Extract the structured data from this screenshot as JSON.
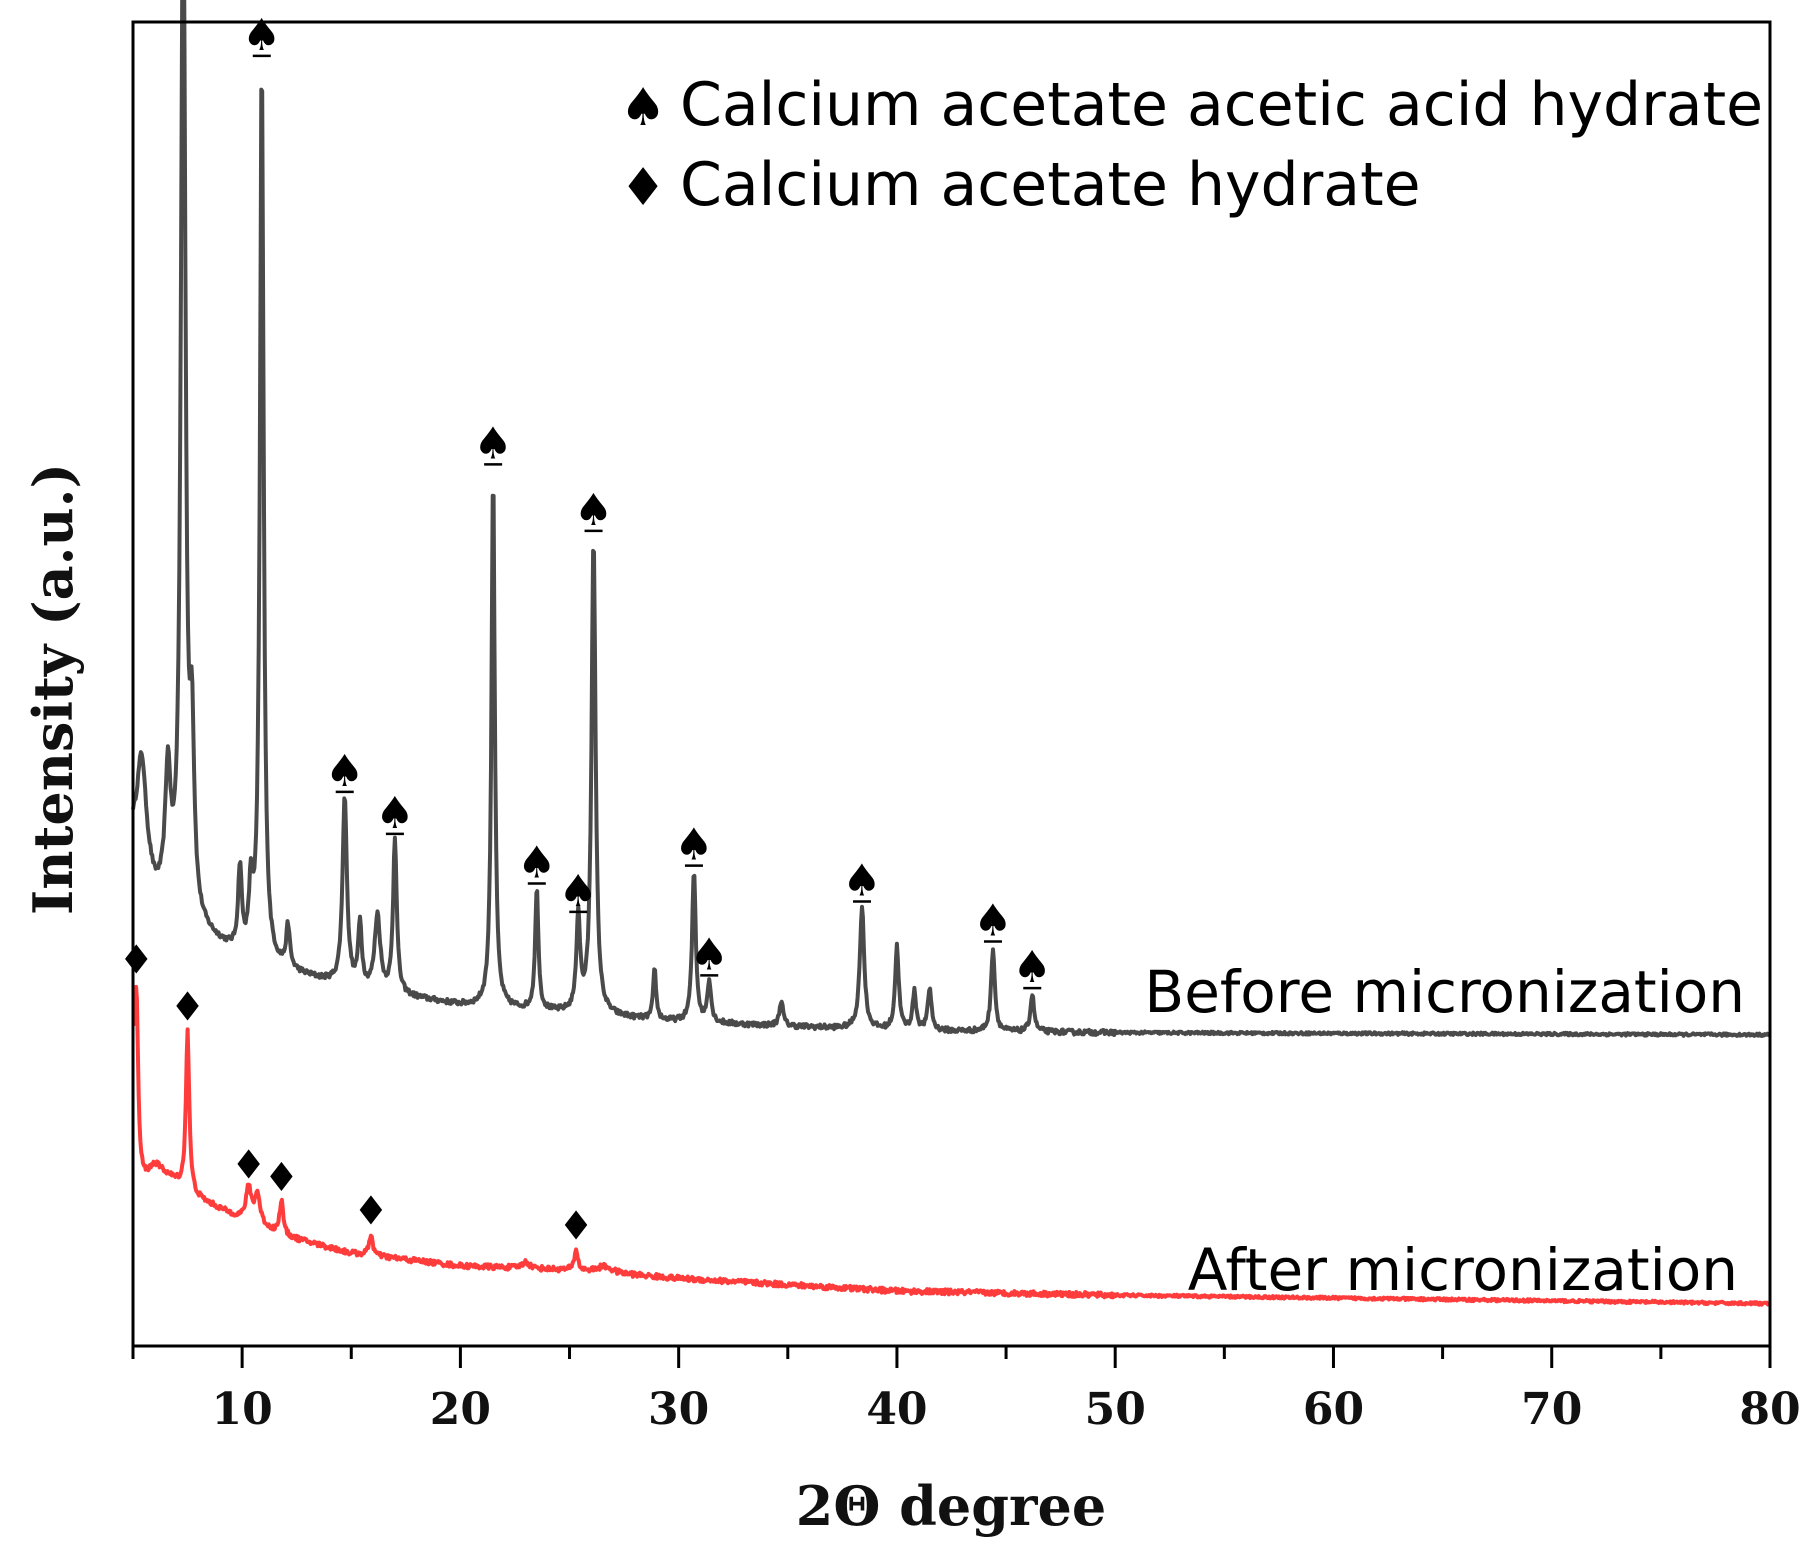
{
  "chart_data": {
    "type": "line",
    "title": "",
    "xlabel": "2Θ degree",
    "ylabel": "Intensity (a.u.)",
    "xlim": [
      5,
      80
    ],
    "xticks": [
      10,
      20,
      30,
      40,
      50,
      60,
      70,
      80
    ],
    "xtick_labels": [
      "10",
      "20",
      "30",
      "40",
      "50",
      "60",
      "70",
      "80"
    ],
    "y_ticks_shown": false,
    "grid": false,
    "legend": {
      "position": "top-right",
      "entries": [
        {
          "symbol": "♠",
          "label": "Calcium acetate acetic acid hydrate"
        },
        {
          "symbol": "♦",
          "label": "Calcium acetate hydrate"
        }
      ]
    },
    "series": [
      {
        "name": "Before micronization",
        "color": "#4a4a4a",
        "baseline": 0.06,
        "background": [
          [
            5,
            0.52
          ],
          [
            6,
            0.38
          ],
          [
            8,
            0.3
          ],
          [
            10,
            0.24
          ],
          [
            12,
            0.21
          ],
          [
            15,
            0.17
          ],
          [
            20,
            0.13
          ],
          [
            25,
            0.11
          ],
          [
            30,
            0.09
          ],
          [
            40,
            0.07
          ],
          [
            50,
            0.065
          ],
          [
            80,
            0.06
          ]
        ],
        "peaks": [
          {
            "x": 5.4,
            "h": 0.25,
            "w": 0.25,
            "marker": false
          },
          {
            "x": 6.6,
            "h": 0.3,
            "w": 0.15,
            "marker": false
          },
          {
            "x": 7.3,
            "h": 2.52,
            "w": 0.12,
            "marker": true
          },
          {
            "x": 7.7,
            "h": 0.4,
            "w": 0.12,
            "marker": false
          },
          {
            "x": 9.9,
            "h": 0.2,
            "w": 0.1,
            "marker": false
          },
          {
            "x": 10.4,
            "h": 0.15,
            "w": 0.1,
            "marker": false
          },
          {
            "x": 10.9,
            "h": 2.15,
            "w": 0.1,
            "marker": true
          },
          {
            "x": 12.1,
            "h": 0.1,
            "w": 0.1,
            "marker": false
          },
          {
            "x": 14.7,
            "h": 0.45,
            "w": 0.12,
            "marker": true
          },
          {
            "x": 15.4,
            "h": 0.15,
            "w": 0.1,
            "marker": false
          },
          {
            "x": 16.2,
            "h": 0.18,
            "w": 0.15,
            "marker": false
          },
          {
            "x": 17.0,
            "h": 0.37,
            "w": 0.1,
            "marker": true
          },
          {
            "x": 21.5,
            "h": 1.28,
            "w": 0.09,
            "marker": true
          },
          {
            "x": 23.5,
            "h": 0.29,
            "w": 0.09,
            "marker": true
          },
          {
            "x": 25.4,
            "h": 0.23,
            "w": 0.1,
            "marker": true
          },
          {
            "x": 26.1,
            "h": 1.14,
            "w": 0.11,
            "marker": true
          },
          {
            "x": 28.9,
            "h": 0.12,
            "w": 0.08,
            "marker": false
          },
          {
            "x": 30.7,
            "h": 0.36,
            "w": 0.1,
            "marker": true
          },
          {
            "x": 31.4,
            "h": 0.1,
            "w": 0.1,
            "marker": true
          },
          {
            "x": 34.7,
            "h": 0.06,
            "w": 0.1,
            "marker": false
          },
          {
            "x": 38.4,
            "h": 0.29,
            "w": 0.12,
            "marker": true
          },
          {
            "x": 40.0,
            "h": 0.2,
            "w": 0.1,
            "marker": false
          },
          {
            "x": 40.8,
            "h": 0.09,
            "w": 0.1,
            "marker": false
          },
          {
            "x": 41.5,
            "h": 0.1,
            "w": 0.1,
            "marker": false
          },
          {
            "x": 44.4,
            "h": 0.2,
            "w": 0.1,
            "marker": true
          },
          {
            "x": 46.2,
            "h": 0.09,
            "w": 0.1,
            "marker": true
          }
        ]
      },
      {
        "name": "After micronization",
        "color": "#ff3c3c",
        "baseline": -0.58,
        "background": [
          [
            5,
            -0.33
          ],
          [
            6,
            -0.25
          ],
          [
            8,
            -0.33
          ],
          [
            10,
            -0.38
          ],
          [
            12,
            -0.42
          ],
          [
            15,
            -0.46
          ],
          [
            20,
            -0.49
          ],
          [
            25,
            -0.5
          ],
          [
            30,
            -0.52
          ],
          [
            40,
            -0.55
          ],
          [
            50,
            -0.56
          ],
          [
            80,
            -0.58
          ]
        ],
        "peaks": [
          {
            "x": 5.15,
            "h": 0.5,
            "w": 0.1,
            "marker": true
          },
          {
            "x": 7.5,
            "h": 0.38,
            "w": 0.09,
            "marker": true
          },
          {
            "x": 10.3,
            "h": 0.08,
            "w": 0.15,
            "marker": true
          },
          {
            "x": 10.7,
            "h": 0.07,
            "w": 0.15,
            "marker": false
          },
          {
            "x": 11.8,
            "h": 0.08,
            "w": 0.1,
            "marker": true
          },
          {
            "x": 15.9,
            "h": 0.05,
            "w": 0.1,
            "marker": true
          },
          {
            "x": 23.0,
            "h": 0.015,
            "w": 0.2,
            "marker": false
          },
          {
            "x": 25.3,
            "h": 0.05,
            "w": 0.09,
            "marker": true
          },
          {
            "x": 26.6,
            "h": 0.015,
            "w": 0.4,
            "marker": false
          }
        ]
      }
    ]
  }
}
